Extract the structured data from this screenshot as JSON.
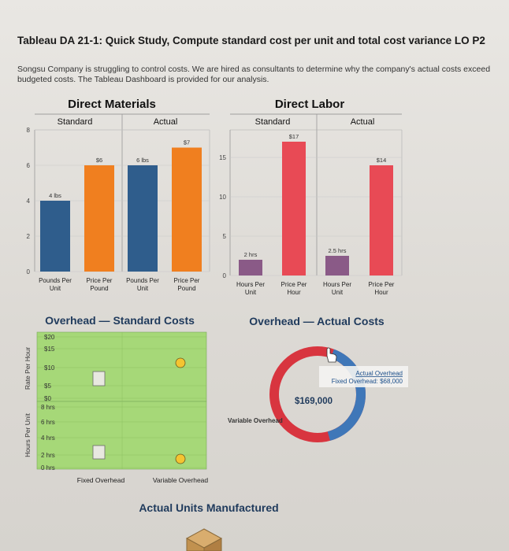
{
  "page": {
    "title": "Tableau DA 21-1: Quick Study, Compute standard cost per unit and total cost variance LO P2",
    "intro": "Songsu Company is struggling to control costs. We are hired as consultants to determine why the company's actual costs exceed budgeted costs. The Tableau Dashboard is provided for our analysis."
  },
  "colors": {
    "blue": "#2f5d8c",
    "orange": "#f07f1f",
    "purple": "#8a5a87",
    "red": "#e84a55",
    "green": "#9fd36f",
    "ring_red": "#d8353f",
    "ring_blue": "#3f77b8"
  },
  "chart_data": [
    {
      "type": "bar",
      "title": "Direct Materials",
      "groups": [
        "Standard",
        "Actual"
      ],
      "categories": [
        "Pounds Per Unit",
        "Price Per Pound",
        "Pounds Per Unit",
        "Price Per Pound"
      ],
      "values": [
        4,
        6,
        6,
        7
      ],
      "data_labels": [
        "4 lbs",
        "$6",
        "6 lbs",
        "$7"
      ],
      "ylim": [
        0,
        8
      ],
      "yticks": [
        "0",
        "2",
        "4",
        "6",
        "8"
      ],
      "grid": true
    },
    {
      "type": "bar",
      "title": "Direct Labor",
      "groups": [
        "Standard",
        "Actual"
      ],
      "categories": [
        "Hours Per Unit",
        "Price Per Hour",
        "Hours Per Unit",
        "Price Per Hour"
      ],
      "values": [
        2,
        17,
        2.5,
        14
      ],
      "data_labels": [
        "2 hrs",
        "$17",
        "2.5 hrs",
        "$14"
      ],
      "ylim": [
        0,
        18
      ],
      "yticks": [
        "0",
        "5",
        "10",
        "15"
      ],
      "grid": true
    },
    {
      "type": "table",
      "title": "Overhead — Standard Costs",
      "columns": [
        "Fixed Overhead",
        "Variable Overhead"
      ],
      "rows": [
        "Rate Per Hour",
        "Hours Per Unit"
      ],
      "rate_ticks": [
        "$20",
        "$15",
        "$10",
        "$5",
        "$0"
      ],
      "hours_ticks": [
        "8 hrs",
        "6 hrs",
        "4 hrs",
        "2 hrs",
        "0 hrs"
      ]
    },
    {
      "type": "pie",
      "title": "Overhead — Actual Costs",
      "slices": [
        {
          "name": "Variable Overhead",
          "value": 101000
        },
        {
          "name": "Fixed Overhead",
          "value": 68000
        }
      ],
      "total_label": "$169,000",
      "tooltip_title": "Actual Overhead",
      "tooltip_text": "Fixed Overhead: $68,000",
      "variable_label": "Variable Overhead"
    }
  ],
  "footer": {
    "units_title": "Actual Units Manufactured"
  }
}
